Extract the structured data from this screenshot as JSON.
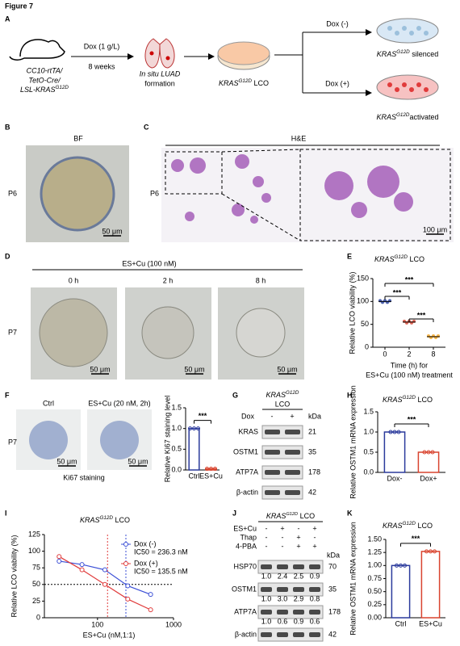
{
  "figure_title": "Figure 7",
  "panel_a": {
    "label": "A",
    "mouse_lines": [
      "CC10-rtTA/",
      "TetO-Cre/"
    ],
    "mouse_last": {
      "text": "LSL-KRAS",
      "sup": "G12D"
    },
    "step1_top": "Dox (1 g/L)",
    "step1_bottom": "8 weeks",
    "lung_lines": [
      "In situ LUAD",
      "formation"
    ],
    "lco": {
      "text": "KRAS",
      "sup": "G12D",
      "rest": " LCO"
    },
    "branch_top": "Dox (-)",
    "branch_bottom": "Dox (+)",
    "silenced": {
      "text": "KRAS",
      "sup": "G12D",
      "rest": " silenced"
    },
    "activated": {
      "text": "KRAS",
      "sup": "G12D",
      "rest": "activated"
    }
  },
  "panel_b": {
    "label": "B",
    "title": "BF",
    "passage": "P6",
    "scale": "50 μm"
  },
  "panel_c": {
    "label": "C",
    "title": "H&E",
    "passage": "P6",
    "scale": "100 μm"
  },
  "panel_d": {
    "label": "D",
    "treatment": "ES+Cu (100 nM)",
    "times": [
      "0 h",
      "2 h",
      "8 h"
    ],
    "passage": "P7",
    "scale": "50 μm"
  },
  "panel_f": {
    "label": "F",
    "titles": [
      "Ctrl",
      "ES+Cu (20 nM, 2h)"
    ],
    "passage": "P7",
    "caption": "Ki67 staining",
    "scale": "50 μm"
  },
  "panel_g": {
    "label": "G",
    "title": {
      "text": "KRAS",
      "sup": "G12D"
    },
    "title_line2": "LCO",
    "dox": "Dox",
    "lanes": [
      "-",
      "+"
    ],
    "kda": "kDa",
    "rows": [
      {
        "protein": "KRAS",
        "size": "21"
      },
      {
        "protein": "OSTM1",
        "size": "35"
      },
      {
        "protein": "ATP7A",
        "size": "178"
      },
      {
        "protein": "β-actin",
        "size": "42"
      }
    ]
  },
  "panel_j": {
    "label": "J",
    "title": {
      "text": "KRAS",
      "sup": "G12D",
      "rest": " LCO"
    },
    "kda": "kDa",
    "treatments": [
      {
        "name": "ES+Cu",
        "signs": [
          "-",
          "+",
          "-",
          "+"
        ]
      },
      {
        "name": "Thap",
        "signs": [
          "-",
          "-",
          "+",
          "-"
        ]
      },
      {
        "name": "4-PBA",
        "signs": [
          "-",
          "-",
          "+",
          "+"
        ]
      }
    ],
    "rows": [
      {
        "protein": "HSP70",
        "size": "70",
        "quant": [
          "1.0",
          "2.4",
          "2.5",
          "0.9"
        ]
      },
      {
        "protein": "OSTM1",
        "size": "35",
        "quant": [
          "1.0",
          "3.0",
          "2.9",
          "0.8"
        ]
      },
      {
        "protein": "ATP7A",
        "size": "178",
        "quant": [
          "1.0",
          "0.6",
          "0.9",
          "0.6"
        ]
      },
      {
        "protein": "β-actin",
        "size": "42"
      }
    ]
  },
  "chart_data": [
    {
      "label": "E",
      "type": "dot",
      "title": {
        "text": "KRAS",
        "sup": "G12D",
        "rest": " LCO"
      },
      "categories": [
        "0",
        "2",
        "8"
      ],
      "values": [
        100,
        55,
        23
      ],
      "colors": [
        "#1f3a9c",
        "#d9442f",
        "#f2a31a"
      ],
      "ylim": [
        0,
        150
      ],
      "yticks": [
        0,
        50,
        100,
        150
      ],
      "ylabel": "Relative LCO viability (%)",
      "xlabel": [
        "Time (h) for",
        "ES+Cu (100 nM) treatment"
      ],
      "significance": [
        "***",
        "***",
        "***"
      ]
    },
    {
      "type": "bar",
      "categories": [
        "Ctrl",
        "ES+Cu"
      ],
      "values": [
        1.0,
        0.03
      ],
      "colors": [
        "#2b3a9c",
        "#d9442f"
      ],
      "ylim": [
        0,
        1.5
      ],
      "yticks": [
        {
          "value": 0,
          "label": "0.0"
        },
        {
          "value": 0.5,
          "label": "0.5"
        },
        {
          "value": 1,
          "label": "1.0"
        },
        {
          "value": 1.5,
          "label": "1.5"
        }
      ],
      "ylabel": "Relative Ki67 staining level",
      "significance": [
        "***"
      ]
    },
    {
      "label": "H",
      "type": "bar",
      "title": {
        "text": "KRAS",
        "sup": "G12D",
        "rest": " LCO"
      },
      "categories": [
        "Dox-",
        "Dox+"
      ],
      "values": [
        1.0,
        0.5
      ],
      "colors": [
        "#2b3a9c",
        "#d9442f"
      ],
      "ylim": [
        0,
        1.5
      ],
      "yticks": [
        {
          "value": 0,
          "label": "0.0"
        },
        {
          "value": 0.5,
          "label": "0.5"
        },
        {
          "value": 1,
          "label": "1.0"
        },
        {
          "value": 1.5,
          "label": "1.5"
        }
      ],
      "ylabel": "Relative OSTM1 mRNA expression",
      "significance": [
        "***"
      ]
    },
    {
      "label": "I",
      "type": "line",
      "title": {
        "text": "KRAS",
        "sup": "G12D",
        "rest": " LCO"
      },
      "xlabel": "ES+Cu (nM,1:1)",
      "ylabel": "Relative LCO viability (%)",
      "xscale": "log",
      "xlim": [
        20,
        1000
      ],
      "xticks": [
        100,
        1000
      ],
      "ylim": [
        0,
        125
      ],
      "yticks": [
        0,
        25,
        50,
        75,
        100,
        125
      ],
      "hline": 50,
      "x": [
        31.25,
        62.5,
        125,
        250,
        500
      ],
      "series": [
        {
          "name": "Dox (-)",
          "ic50_label": "IC50 = 236.3 nM",
          "ic50": 236.3,
          "color": "#3b4fd6",
          "values": [
            85,
            80,
            72,
            48,
            35
          ]
        },
        {
          "name": "Dox (+)",
          "ic50_label": "IC50 = 135.5 nM",
          "ic50": 135.5,
          "color": "#e03b3b",
          "values": [
            92,
            72,
            50,
            28,
            12
          ]
        }
      ]
    },
    {
      "label": "K",
      "type": "bar",
      "title": {
        "text": "KRAS",
        "sup": "G12D",
        "rest": " LCO"
      },
      "categories": [
        "Ctrl",
        "ES+Cu"
      ],
      "values": [
        1.0,
        1.27
      ],
      "colors": [
        "#2b3a9c",
        "#d9442f"
      ],
      "ylim": [
        0,
        1.5
      ],
      "yticks": [
        {
          "value": 0,
          "label": "0.00"
        },
        {
          "value": 0.25,
          "label": "0.25"
        },
        {
          "value": 0.5,
          "label": "0.50"
        },
        {
          "value": 0.75,
          "label": "0.75"
        },
        {
          "value": 1,
          "label": "1.00"
        },
        {
          "value": 1.25,
          "label": "1.25"
        },
        {
          "value": 1.5,
          "label": "1.50"
        }
      ],
      "ylabel": "Relative OSTM1 mRNA expression",
      "significance": [
        "***"
      ]
    }
  ]
}
